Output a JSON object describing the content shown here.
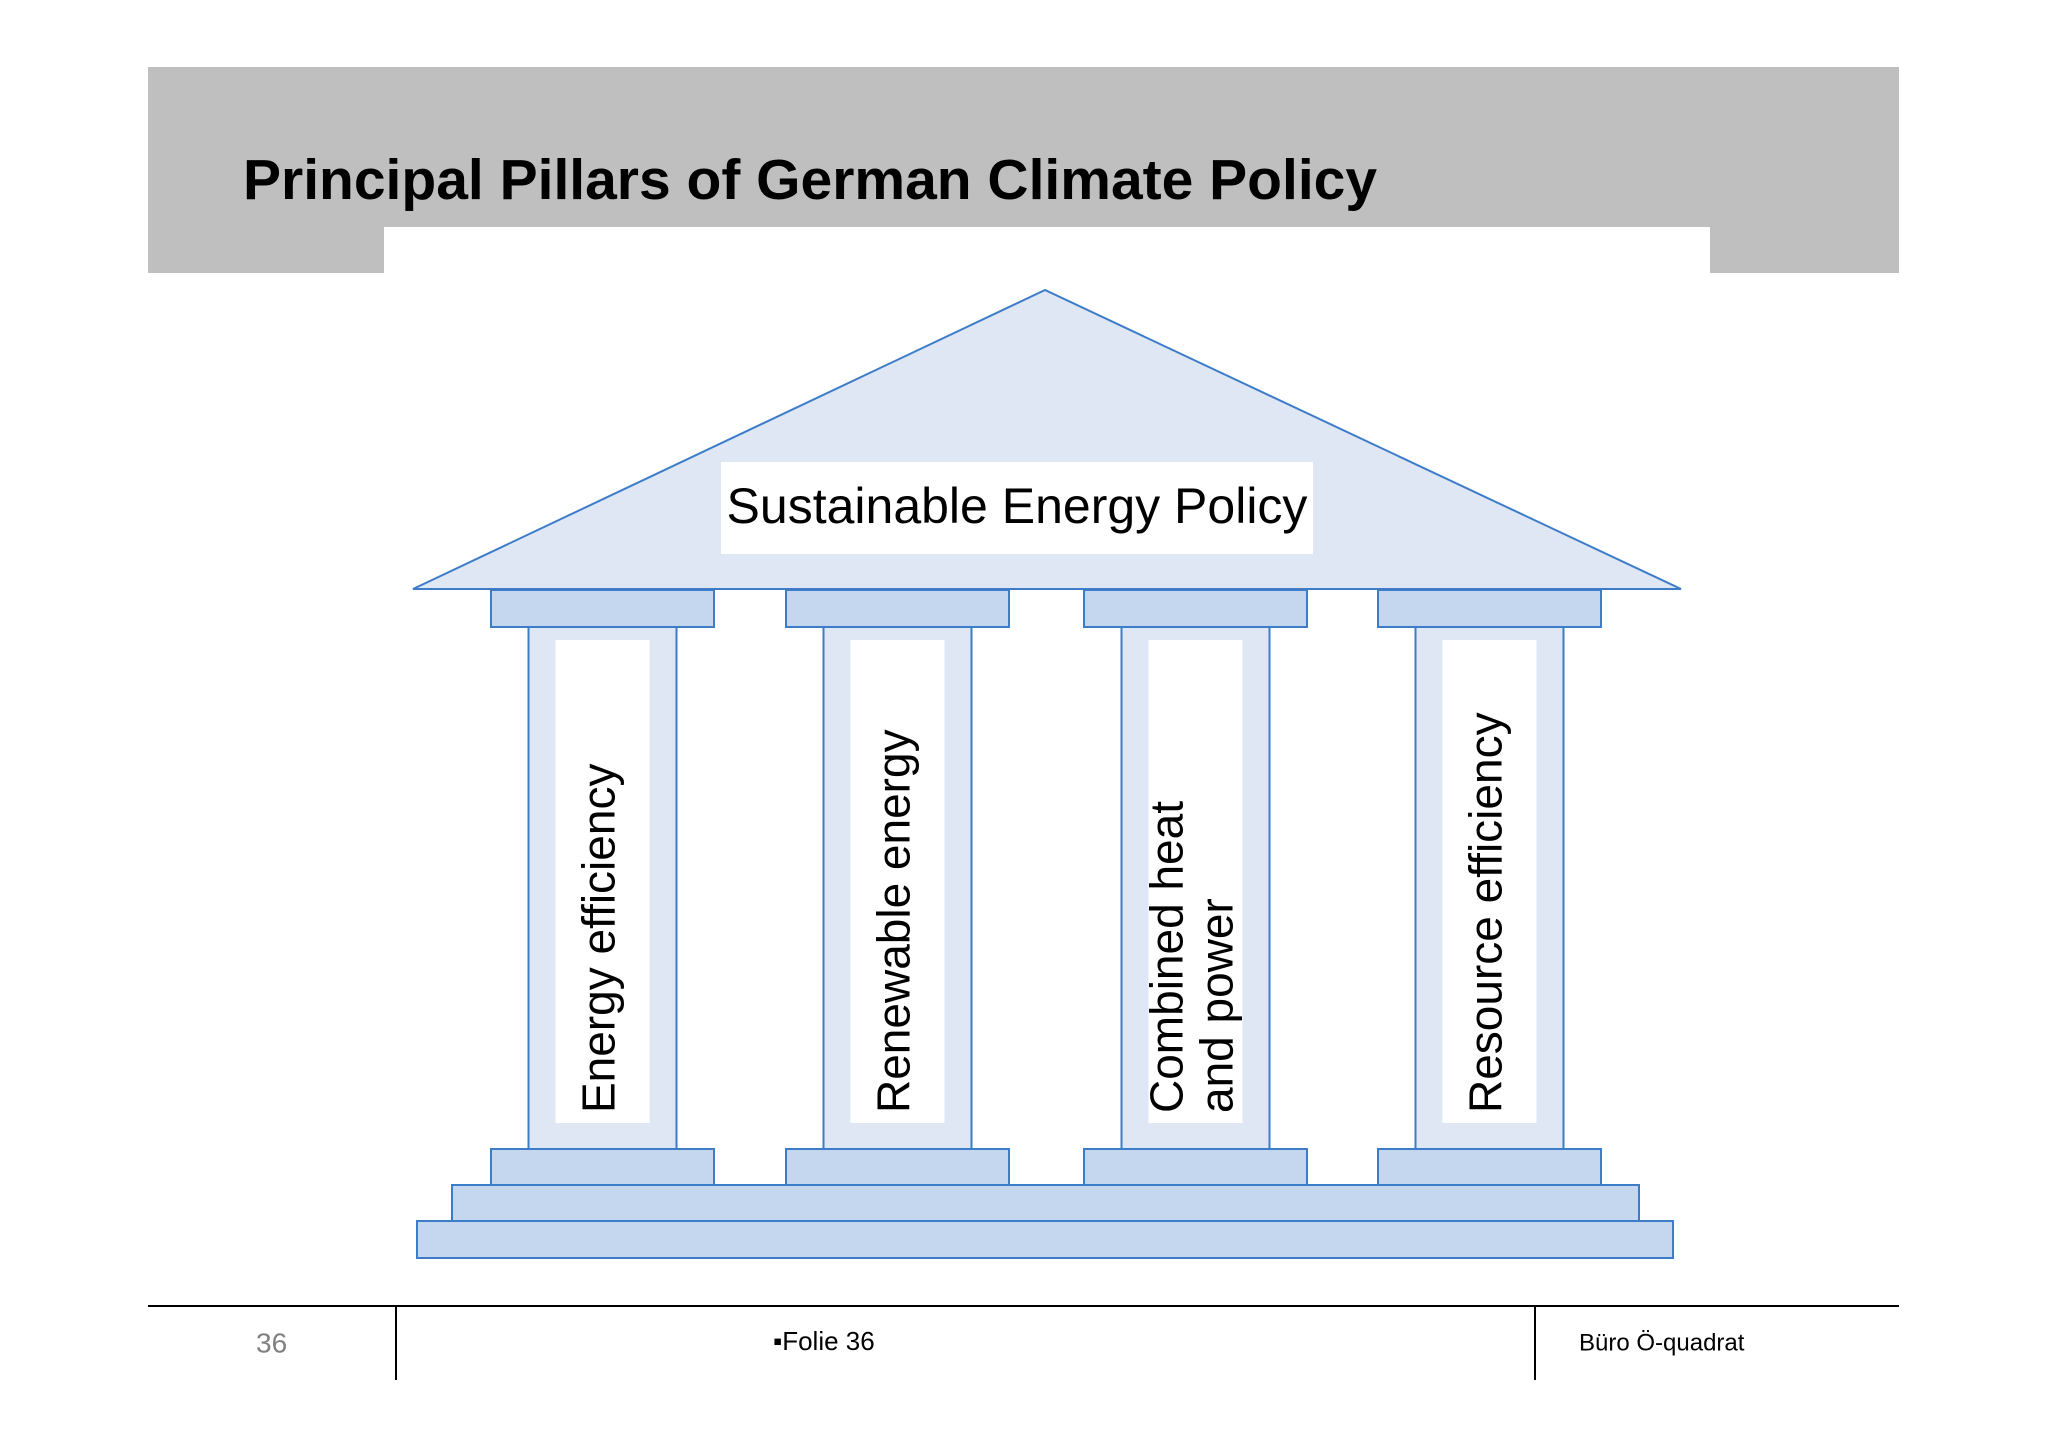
{
  "header": {
    "title": "Principal Pillars of German Climate Policy"
  },
  "diagram": {
    "roof_label": "Sustainable Energy Policy",
    "pillars": [
      {
        "lines": [
          "Energy efficiency"
        ]
      },
      {
        "lines": [
          "Renewable energy"
        ]
      },
      {
        "lines": [
          "Combined heat",
          "and power"
        ]
      },
      {
        "lines": [
          "Resource efficiency"
        ]
      }
    ]
  },
  "footer": {
    "page_number": "36",
    "center": "▪Folie 36",
    "right": "Büro Ö-quadrat"
  }
}
